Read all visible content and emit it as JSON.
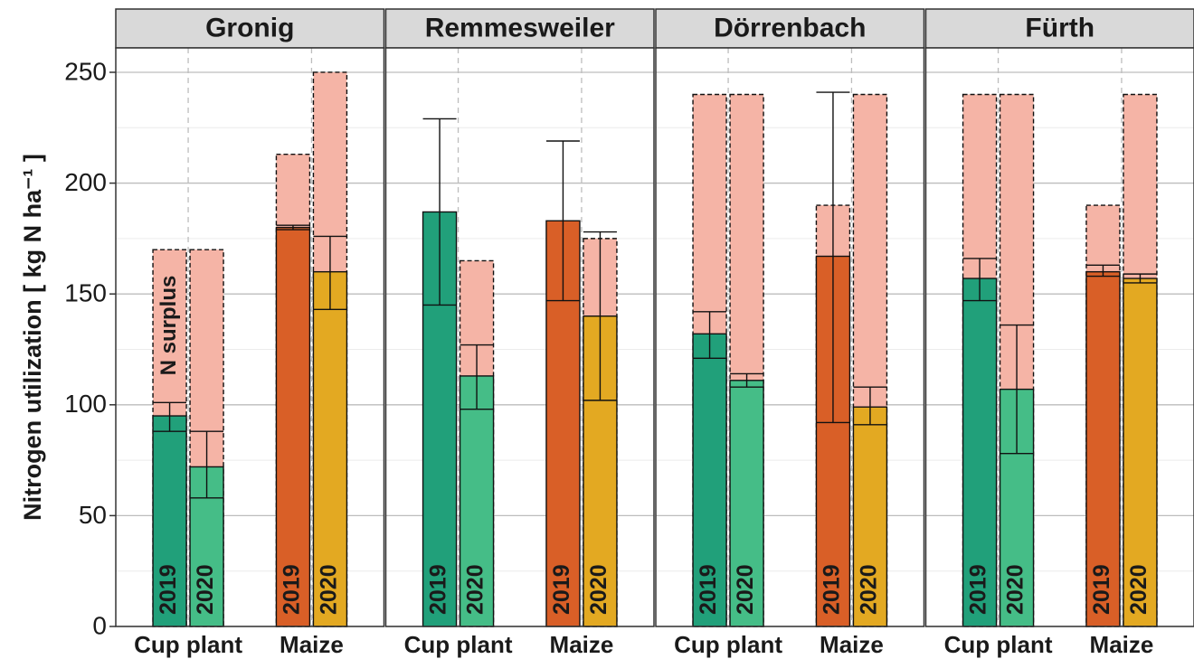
{
  "chart_data": {
    "type": "bar",
    "y_label": "Nitrogen utilization  [ kg N ha⁻¹ ]",
    "annotation": "N surplus",
    "surplus_color": "#f5b4a6",
    "facets": [
      "Gronig",
      "Remmesweiler",
      "Dörrenbach",
      "Fürth"
    ],
    "categories": [
      {
        "name": "Cup plant",
        "series": [
          {
            "name": "2019",
            "color": "#21a07a",
            "values": [
              95,
              187,
              132,
              157
            ],
            "lower": [
              88,
              145,
              121,
              147
            ],
            "upper": [
              101,
              229,
              142,
              166
            ],
            "n_input": [
              170,
              null,
              240,
              240
            ]
          },
          {
            "name": "2020",
            "color": "#45bd87",
            "values": [
              72,
              113,
              111,
              107
            ],
            "lower": [
              58,
              98,
              108,
              78
            ],
            "upper": [
              88,
              127,
              114,
              136
            ],
            "n_input": [
              170,
              165,
              240,
              240
            ]
          }
        ]
      },
      {
        "name": "Maize",
        "series": [
          {
            "name": "2019",
            "color": "#d95f27",
            "values": [
              180,
              183,
              167,
              160
            ],
            "lower": [
              179,
              147,
              92,
              158
            ],
            "upper": [
              181,
              219,
              241,
              163
            ],
            "n_input": [
              213,
              null,
              190,
              190
            ]
          },
          {
            "name": "2020",
            "color": "#e3a922",
            "values": [
              160,
              140,
              99,
              157
            ],
            "lower": [
              143,
              102,
              91,
              155
            ],
            "upper": [
              176,
              178,
              108,
              159
            ],
            "n_input": [
              250,
              175,
              240,
              240
            ]
          }
        ]
      }
    ],
    "ylim": [
      0,
      261
    ],
    "yticks": [
      0,
      50,
      100,
      150,
      200,
      250
    ],
    "grid": true
  }
}
